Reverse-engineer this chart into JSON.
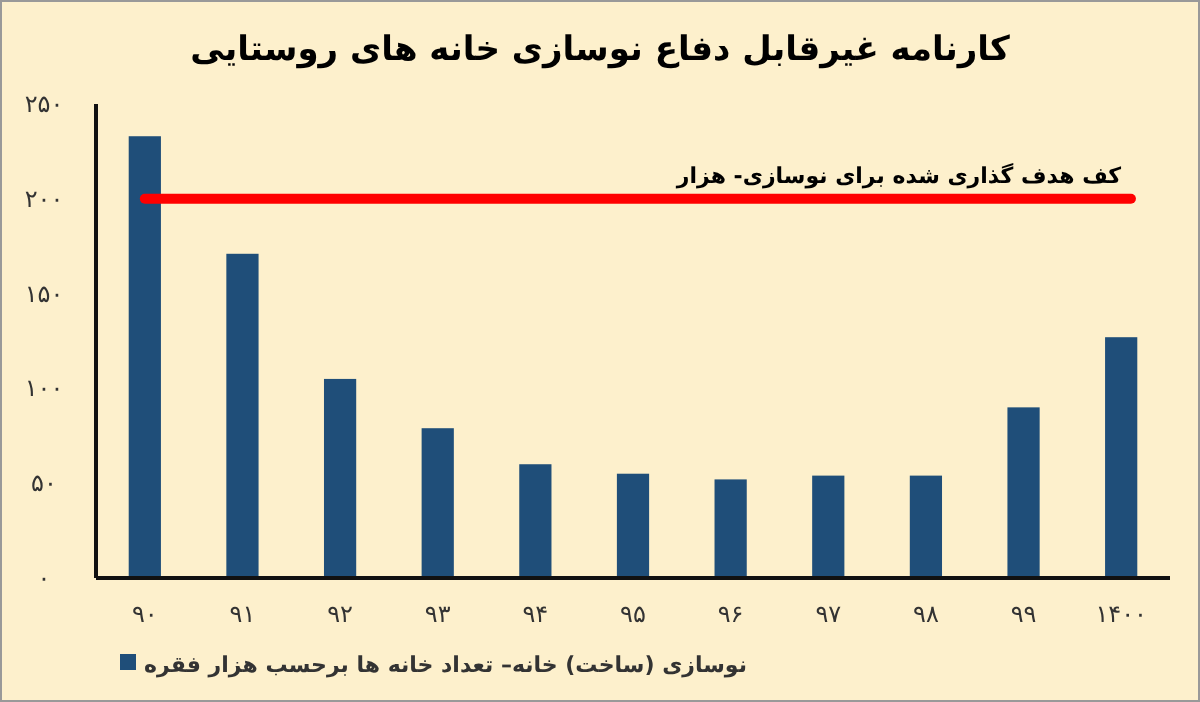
{
  "chart_data": {
    "type": "bar",
    "title": "کارنامه غیرقابل دفاع نوسازی خانه های روستایی",
    "categories": [
      "۹۰",
      "۹۱",
      "۹۲",
      "۹۳",
      "۹۴",
      "۹۵",
      "۹۶",
      "۹۷",
      "۹۸",
      "۹۹",
      "۱۴۰۰"
    ],
    "series": [
      {
        "name": "نوسازی (ساخت) خانه– تعداد خانه ها برحسب هزار فقره",
        "color": "#1f4e79",
        "values": [
          233,
          171,
          105,
          79,
          60,
          55,
          52,
          54,
          54,
          90,
          127
        ]
      }
    ],
    "ylim": [
      0,
      250
    ],
    "yticks": [
      {
        "value": 0,
        "label": "۰"
      },
      {
        "value": 50,
        "label": "۵۰"
      },
      {
        "value": 100,
        "label": "۱۰۰"
      },
      {
        "value": 150,
        "label": "۱۵۰"
      },
      {
        "value": 200,
        "label": "۲۰۰"
      },
      {
        "value": 250,
        "label": "۲۵۰"
      }
    ],
    "ref_lines": [
      {
        "axis": "y",
        "value": 200,
        "label": "کف هدف گذاری شده برای نوسازی- هزار",
        "color": "#ff0000"
      }
    ],
    "grid": false,
    "legend": "bottom left"
  }
}
